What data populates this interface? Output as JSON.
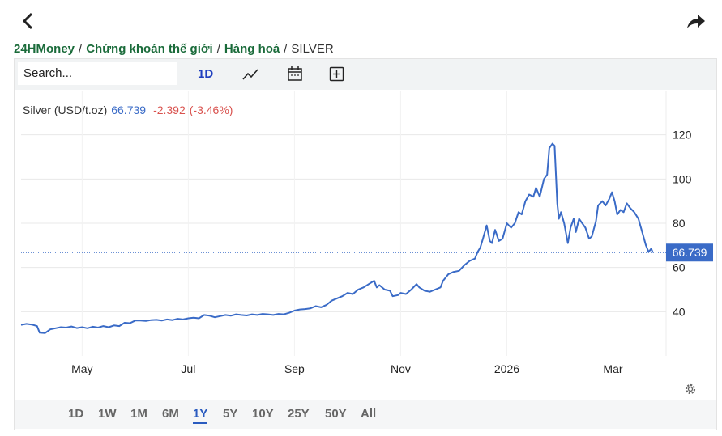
{
  "breadcrumb": {
    "items": [
      "24HMoney",
      "Chứng khoán thế giới",
      "Hàng hoá",
      "SILVER"
    ],
    "separator": "/"
  },
  "toolbar": {
    "search_placeholder": "Search...",
    "interval": "1D"
  },
  "ranges": [
    "1D",
    "1W",
    "1M",
    "6M",
    "1Y",
    "5Y",
    "10Y",
    "25Y",
    "50Y",
    "All"
  ],
  "chart_data": {
    "type": "line",
    "last_price": 66.739,
    "change": -2.392,
    "change_percent": {
      "value": -3.46,
      "label": "(-3.46%)"
    },
    "x": [
      3.85,
      3.95,
      4.05,
      4.15,
      4.2,
      4.3,
      4.4,
      4.5,
      4.6,
      4.7,
      4.8,
      4.9,
      5.0,
      5.1,
      5.2,
      5.3,
      5.4,
      5.5,
      5.6,
      5.7,
      5.8,
      5.9,
      6.0,
      6.1,
      6.2,
      6.3,
      6.4,
      6.5,
      6.6,
      6.7,
      6.8,
      6.9,
      7.0,
      7.1,
      7.2,
      7.3,
      7.4,
      7.5,
      7.6,
      7.7,
      7.8,
      7.9,
      8.0,
      8.1,
      8.2,
      8.3,
      8.4,
      8.5,
      8.6,
      8.7,
      8.8,
      8.9,
      9.0,
      9.1,
      9.2,
      9.3,
      9.4,
      9.5,
      9.6,
      9.7,
      9.8,
      9.9,
      10.0,
      10.1,
      10.2,
      10.3,
      10.4,
      10.5,
      10.55,
      10.6,
      10.7,
      10.8,
      10.85,
      10.95,
      11.0,
      11.1,
      11.2,
      11.3,
      11.35,
      11.45,
      11.55,
      11.65,
      11.75,
      11.8,
      11.9,
      12.0,
      12.1,
      12.2,
      12.3,
      12.4,
      12.45,
      12.5,
      12.55,
      12.62,
      12.68,
      12.72,
      12.78,
      12.85,
      12.92,
      13.0,
      13.08,
      13.15,
      13.22,
      13.28,
      13.35,
      13.42,
      13.5,
      13.55,
      13.62,
      13.7,
      13.76,
      13.8,
      13.86,
      13.9,
      13.95,
      13.98,
      14.02,
      14.08,
      14.15,
      14.2,
      14.26,
      14.3,
      14.36,
      14.42,
      14.48,
      14.55,
      14.6,
      14.68,
      14.72,
      14.8,
      14.86,
      14.93,
      14.98,
      15.03,
      15.08,
      15.14,
      15.2,
      15.26,
      15.32,
      15.4,
      15.48,
      15.55,
      15.62,
      15.67,
      15.72,
      15.75
    ],
    "series": [
      {
        "name": "Silver (USD/t.oz)",
        "color": "#3a6bc7",
        "values": [
          34.0,
          34.5,
          34.2,
          33.5,
          30.5,
          30.3,
          32,
          32.5,
          33,
          32.8,
          33.3,
          32.6,
          33,
          32.5,
          33.2,
          32.8,
          33.5,
          33,
          33.8,
          33.5,
          35,
          34.8,
          36,
          36,
          35.8,
          36.2,
          36.3,
          36,
          36.5,
          36.2,
          36.8,
          36.5,
          37,
          37.3,
          37,
          38.5,
          38.2,
          37.5,
          38,
          38.5,
          38.2,
          38.8,
          38.5,
          38.3,
          38.8,
          38.5,
          39,
          38.8,
          38.5,
          39,
          38.8,
          39.5,
          40.5,
          41,
          41.2,
          41.5,
          42.5,
          42,
          43,
          45,
          46,
          47,
          48.5,
          48,
          50,
          51,
          52.5,
          54,
          51,
          52,
          50,
          49.5,
          47,
          47.5,
          48.5,
          48,
          50,
          52.5,
          51,
          49.5,
          49,
          50,
          51,
          54,
          57,
          58,
          58.5,
          61,
          63,
          64,
          67,
          69,
          73,
          79,
          72,
          71,
          77,
          72,
          73,
          80,
          78,
          80,
          85,
          84,
          90,
          93,
          92,
          96,
          92,
          100,
          102,
          114,
          116,
          115,
          89,
          82,
          85,
          80,
          71,
          78,
          82,
          76,
          82,
          80,
          78,
          73,
          74,
          81,
          88,
          90,
          88,
          91,
          94,
          90,
          84,
          86,
          85,
          89,
          87,
          85,
          82,
          76,
          70,
          67,
          68.5,
          66.739
        ]
      }
    ],
    "xlim": [
      3.85,
      16.0
    ],
    "xticks": [
      {
        "value": 5,
        "label": "May"
      },
      {
        "value": 7,
        "label": "Jul"
      },
      {
        "value": 9,
        "label": "Sep"
      },
      {
        "value": 11,
        "label": "Nov"
      },
      {
        "value": 13,
        "label": "2026"
      },
      {
        "value": 15,
        "label": "Mar"
      }
    ],
    "ylim": [
      20,
      140
    ],
    "yticks": [
      40,
      60,
      80,
      100,
      120
    ],
    "grid": true
  }
}
